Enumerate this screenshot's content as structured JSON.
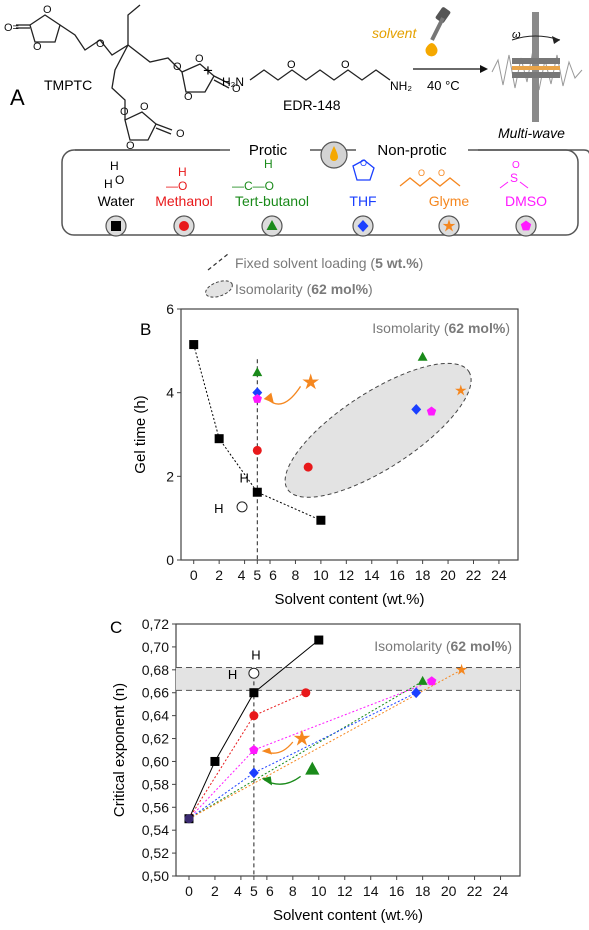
{
  "panelA": {
    "letter": "A",
    "reactant1": "TMPTC",
    "plus": "+",
    "reactant2": "EDR-148",
    "solvent_label": "solvent",
    "temperature": "40 °C",
    "rheo_label": "Multi-wave",
    "omega": "ω",
    "protic_label": "Protic",
    "nonprotic_label": "Non-protic",
    "solvents": [
      {
        "name": "Water",
        "color": "#000000",
        "marker": "square"
      },
      {
        "name": "Methanol",
        "color": "#e8191b",
        "marker": "circle"
      },
      {
        "name": "Tert-butanol",
        "color": "#1a8a1a",
        "marker": "triangle"
      },
      {
        "name": "THF",
        "color": "#1a3fff",
        "marker": "diamond"
      },
      {
        "name": "Glyme",
        "color": "#f5871f",
        "marker": "star"
      },
      {
        "name": "DMSO",
        "color": "#ff19ff",
        "marker": "pentagon"
      }
    ],
    "legend_fixed": {
      "pre": "Fixed solvent loading (",
      "bold": "5 wt.%",
      "post": ")"
    },
    "legend_iso": {
      "pre": "Isomolarity (",
      "bold": "62 mol%",
      "post": ")"
    }
  },
  "chart_data": [
    {
      "panel": "B",
      "type": "scatter",
      "xlabel": "Solvent content (wt.%)",
      "ylabel": "Gel time (h)",
      "xlim": [
        -1,
        25.5
      ],
      "ylim": [
        0,
        6
      ],
      "xticks": [
        0,
        2,
        4,
        5,
        6,
        8,
        10,
        12,
        14,
        16,
        18,
        20,
        22,
        24
      ],
      "yticks": [
        0,
        2,
        4,
        6
      ],
      "annotation": {
        "pre": "Isomolarity (",
        "bold": "62 mol%",
        "post": ")"
      },
      "water_label": "H",
      "series": [
        {
          "name": "Water",
          "color": "#000000",
          "marker": "square",
          "line": "solid",
          "points": [
            [
              0,
              5.15
            ],
            [
              2,
              2.9
            ],
            [
              5,
              1.62
            ],
            [
              10,
              0.95
            ]
          ]
        },
        {
          "name": "Methanol",
          "color": "#e8191b",
          "marker": "circle",
          "points": [
            [
              5,
              2.62
            ],
            [
              9,
              2.22
            ]
          ]
        },
        {
          "name": "Tert-butanol",
          "color": "#1a8a1a",
          "marker": "triangle",
          "points": [
            [
              5,
              4.48
            ],
            [
              18,
              4.85
            ]
          ]
        },
        {
          "name": "THF",
          "color": "#1a3fff",
          "marker": "diamond",
          "points": [
            [
              5,
              4.0
            ],
            [
              17.5,
              3.6
            ]
          ]
        },
        {
          "name": "Glyme",
          "color": "#f5871f",
          "marker": "star",
          "points": [
            [
              9.2,
              4.25
            ],
            [
              21,
              4.05
            ]
          ]
        },
        {
          "name": "DMSO",
          "color": "#ff19ff",
          "marker": "pentagon",
          "points": [
            [
              5,
              3.85
            ],
            [
              18.7,
              3.55
            ]
          ]
        }
      ]
    },
    {
      "panel": "C",
      "type": "scatter",
      "xlabel": "Solvent content (wt.%)",
      "ylabel": "Critical exponent (n)",
      "xlim": [
        -1,
        25.5
      ],
      "ylim": [
        0.5,
        0.72
      ],
      "xticks": [
        0,
        2,
        4,
        5,
        6,
        8,
        10,
        12,
        14,
        16,
        18,
        20,
        22,
        24
      ],
      "yticks": [
        "0,50",
        "0,52",
        "0,54",
        "0,56",
        "0,58",
        "0,60",
        "0,62",
        "0,64",
        "0,66",
        "0,68",
        "0,70",
        "0,72"
      ],
      "annotation": {
        "pre": "Isomolarity (",
        "bold": "62 mol%",
        "post": ")"
      },
      "band": [
        0.662,
        0.682
      ],
      "water_label": "H",
      "series": [
        {
          "name": "Water",
          "color": "#000000",
          "marker": "square",
          "line": "solid",
          "points": [
            [
              0,
              0.55
            ],
            [
              2,
              0.6
            ],
            [
              5,
              0.66
            ],
            [
              10,
              0.706
            ]
          ]
        },
        {
          "name": "Methanol",
          "color": "#e8191b",
          "marker": "circle",
          "line": "dotted",
          "points": [
            [
              0,
              0.55
            ],
            [
              5,
              0.64
            ],
            [
              9,
              0.66
            ]
          ]
        },
        {
          "name": "Tert-butanol",
          "color": "#1a8a1a",
          "marker": "triangle",
          "line": "dotted",
          "points": [
            [
              0,
              0.55
            ],
            [
              18,
              0.67
            ]
          ]
        },
        {
          "name": "THF",
          "color": "#1a3fff",
          "marker": "diamond",
          "line": "dotted",
          "points": [
            [
              0,
              0.55
            ],
            [
              5,
              0.59
            ],
            [
              17.5,
              0.66
            ]
          ]
        },
        {
          "name": "Glyme",
          "color": "#f5871f",
          "marker": "star",
          "line": "dotted",
          "points": [
            [
              0,
              0.55
            ],
            [
              21,
              0.68
            ]
          ]
        },
        {
          "name": "DMSO",
          "color": "#ff19ff",
          "marker": "pentagon",
          "line": "dotted",
          "points": [
            [
              0,
              0.55
            ],
            [
              5,
              0.61
            ],
            [
              18.7,
              0.67
            ]
          ]
        },
        {
          "name": "Tert-butanol (5 wt.%)",
          "color": "#1a8a1a",
          "marker": "triangle",
          "points": [
            [
              9.5,
              0.593
            ]
          ]
        },
        {
          "name": "Glyme (5 wt.%)",
          "color": "#f5871f",
          "marker": "star",
          "points": [
            [
              8.7,
              0.62
            ]
          ]
        }
      ]
    }
  ]
}
